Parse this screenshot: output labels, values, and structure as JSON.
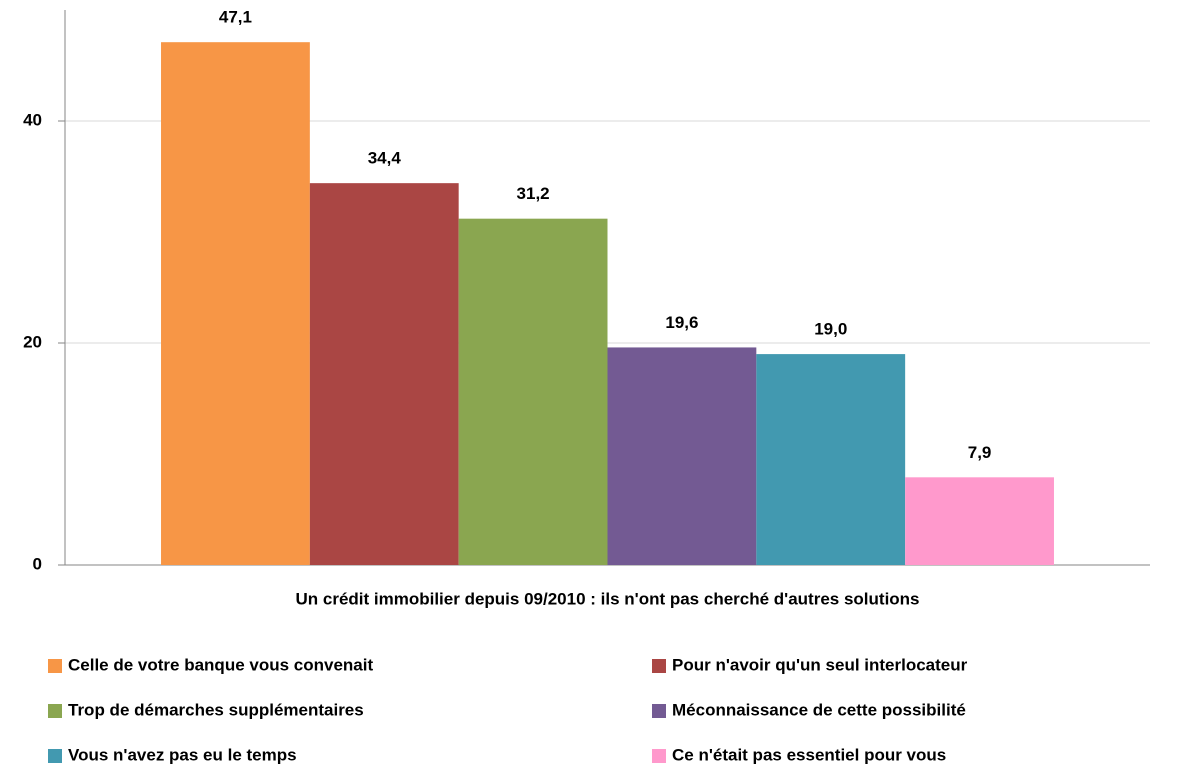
{
  "chart_data": {
    "type": "bar",
    "categories": [
      "Un crédit immobilier depuis 09/2010 : ils n'ont pas cherché d'autres solutions"
    ],
    "series": [
      {
        "name": "Celle de votre banque vous convenait",
        "color": "#f79646",
        "values": [
          47.1
        ],
        "value_labels": [
          "47,1"
        ]
      },
      {
        "name": "Pour n'avoir qu'un seul interlocateur",
        "color": "#aa4644",
        "values": [
          34.4
        ],
        "value_labels": [
          "34,4"
        ]
      },
      {
        "name": "Trop de démarches supplémentaires",
        "color": "#8aa650",
        "values": [
          31.2
        ],
        "value_labels": [
          "31,2"
        ]
      },
      {
        "name": "Méconnaissance de cette possibilité",
        "color": "#735a93",
        "values": [
          19.6
        ],
        "value_labels": [
          "19,6"
        ]
      },
      {
        "name": "Vous n'avez pas eu le temps",
        "color": "#4299b0",
        "values": [
          19.0
        ],
        "value_labels": [
          "19,0"
        ]
      },
      {
        "name": "Ce n'était pas essentiel pour vous",
        "color": "#ff99cc",
        "values": [
          7.9
        ],
        "value_labels": [
          "7,9"
        ]
      }
    ],
    "ylim": [
      0,
      50
    ],
    "yticks": [
      0,
      20,
      40
    ],
    "grid": true,
    "legend": "bottom"
  }
}
